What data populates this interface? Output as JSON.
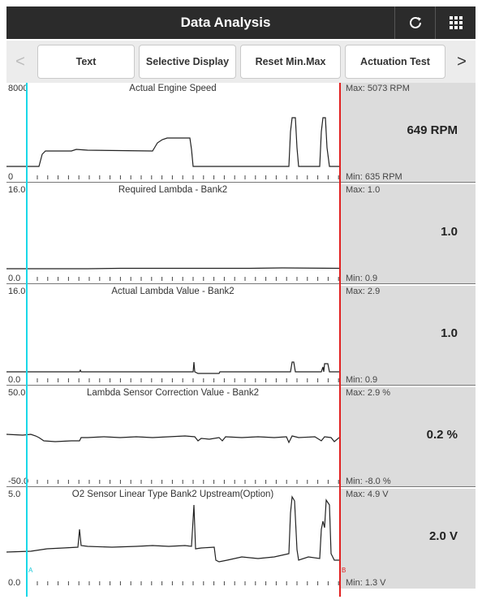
{
  "header": {
    "title": "Data Analysis",
    "refresh_icon": "refresh-icon",
    "grid_icon": "grid-icon"
  },
  "toolbar": {
    "prev_arrow": "<",
    "next_arrow": ">",
    "buttons": [
      "Text",
      "Selective Display",
      "Reset Min.Max",
      "Actuation Test"
    ]
  },
  "cursors": {
    "a_label": "A",
    "b_label": "B",
    "a_color": "#19d8e8",
    "b_color": "#e12020"
  },
  "panels": [
    {
      "title": "Actual Engine Speed",
      "y_max": "8000",
      "y_min": "0",
      "max": "Max: 5073 RPM",
      "min": "Min: 635 RPM",
      "value": "649 RPM"
    },
    {
      "title": "Required Lambda - Bank2",
      "y_max": "16.0",
      "y_min": "0.0",
      "max": "Max: 1.0",
      "min": "Min: 0.9",
      "value": "1.0"
    },
    {
      "title": "Actual Lambda Value - Bank2",
      "y_max": "16.0",
      "y_min": "0.0",
      "max": "Max: 2.9",
      "min": "Min: 0.9",
      "value": "1.0"
    },
    {
      "title": "Lambda Sensor Correction Value - Bank2",
      "y_max": "50.0",
      "y_min": "-50.0",
      "max": "Max: 2.9 %",
      "min": "Min: -8.0 %",
      "value": "0.2 %"
    },
    {
      "title": "O2 Sensor Linear Type Bank2 Upstream(Option)",
      "y_max": "5.0",
      "y_min": "0.0",
      "max": "Max: 4.9 V",
      "min": "Min: 1.3 V",
      "value": "2.0 V"
    }
  ]
}
